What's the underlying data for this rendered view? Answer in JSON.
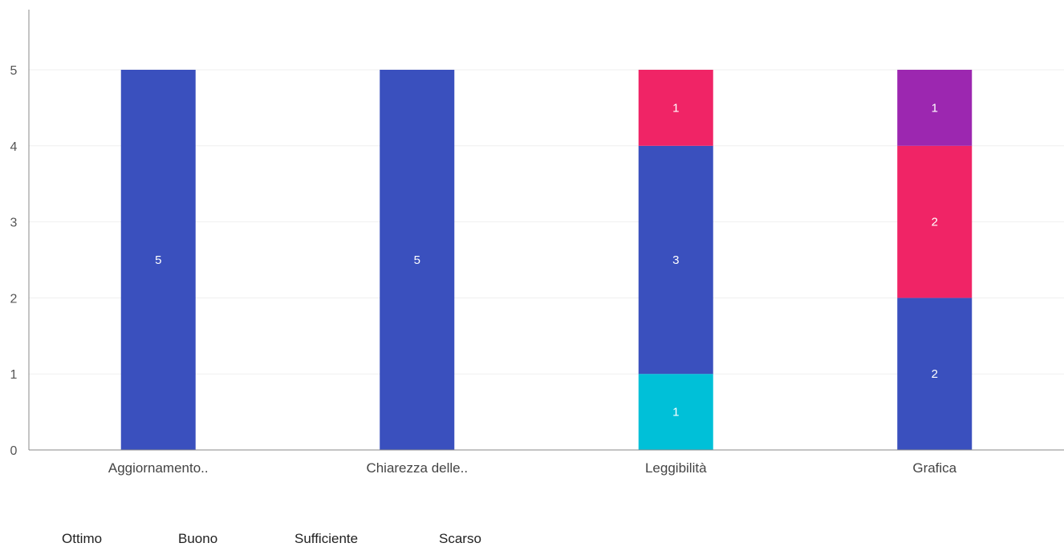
{
  "chart_data": {
    "type": "bar",
    "stacked": true,
    "title": "",
    "xlabel": "",
    "ylabel": "",
    "ylim": [
      0,
      5.8
    ],
    "yticks": [
      0,
      1,
      2,
      3,
      4,
      5
    ],
    "grid": true,
    "legend_position": "bottom-left",
    "categories": [
      "Aggiornamento..",
      "Chiarezza delle..",
      "Leggibilità",
      "Grafica"
    ],
    "series": [
      {
        "name": "Sufficiente",
        "color": "#00C0D8",
        "values": [
          0,
          0,
          1,
          0
        ]
      },
      {
        "name": "Ottimo",
        "color": "#3A50BE",
        "values": [
          5,
          5,
          3,
          2
        ]
      },
      {
        "name": "Buono",
        "color": "#F02466",
        "values": [
          0,
          0,
          1,
          2
        ]
      },
      {
        "name": "Scarso",
        "color": "#9C27B0",
        "values": [
          0,
          0,
          0,
          1
        ]
      }
    ],
    "legend_labels": [
      "Ottimo",
      "Buono",
      "Sufficiente",
      "Scarso"
    ]
  }
}
